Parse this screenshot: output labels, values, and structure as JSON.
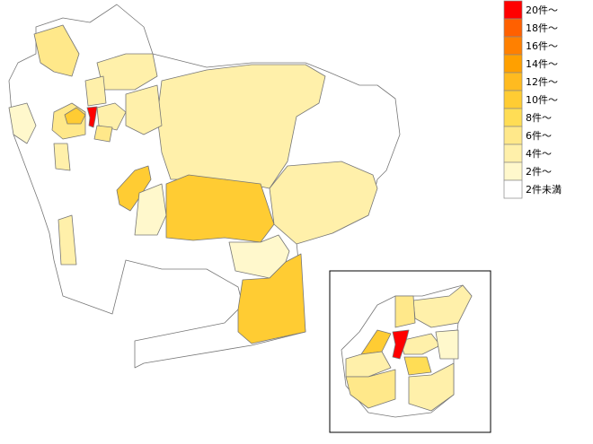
{
  "legend": {
    "items": [
      {
        "label": "20件～",
        "color": "#ff0000"
      },
      {
        "label": "18件～",
        "color": "#ff6000"
      },
      {
        "label": "16件～",
        "color": "#ff8000"
      },
      {
        "label": "14件～",
        "color": "#ffa000"
      },
      {
        "label": "12件～",
        "color": "#ffbb20"
      },
      {
        "label": "10件～",
        "color": "#ffcc33"
      },
      {
        "label": "8件～",
        "color": "#ffdd55"
      },
      {
        "label": "6件～",
        "color": "#ffe88a"
      },
      {
        "label": "4件～",
        "color": "#fff0aa"
      },
      {
        "label": "2件～",
        "color": "#fff8cc"
      },
      {
        "label": "2件未満",
        "color": "#ffffff"
      }
    ]
  }
}
